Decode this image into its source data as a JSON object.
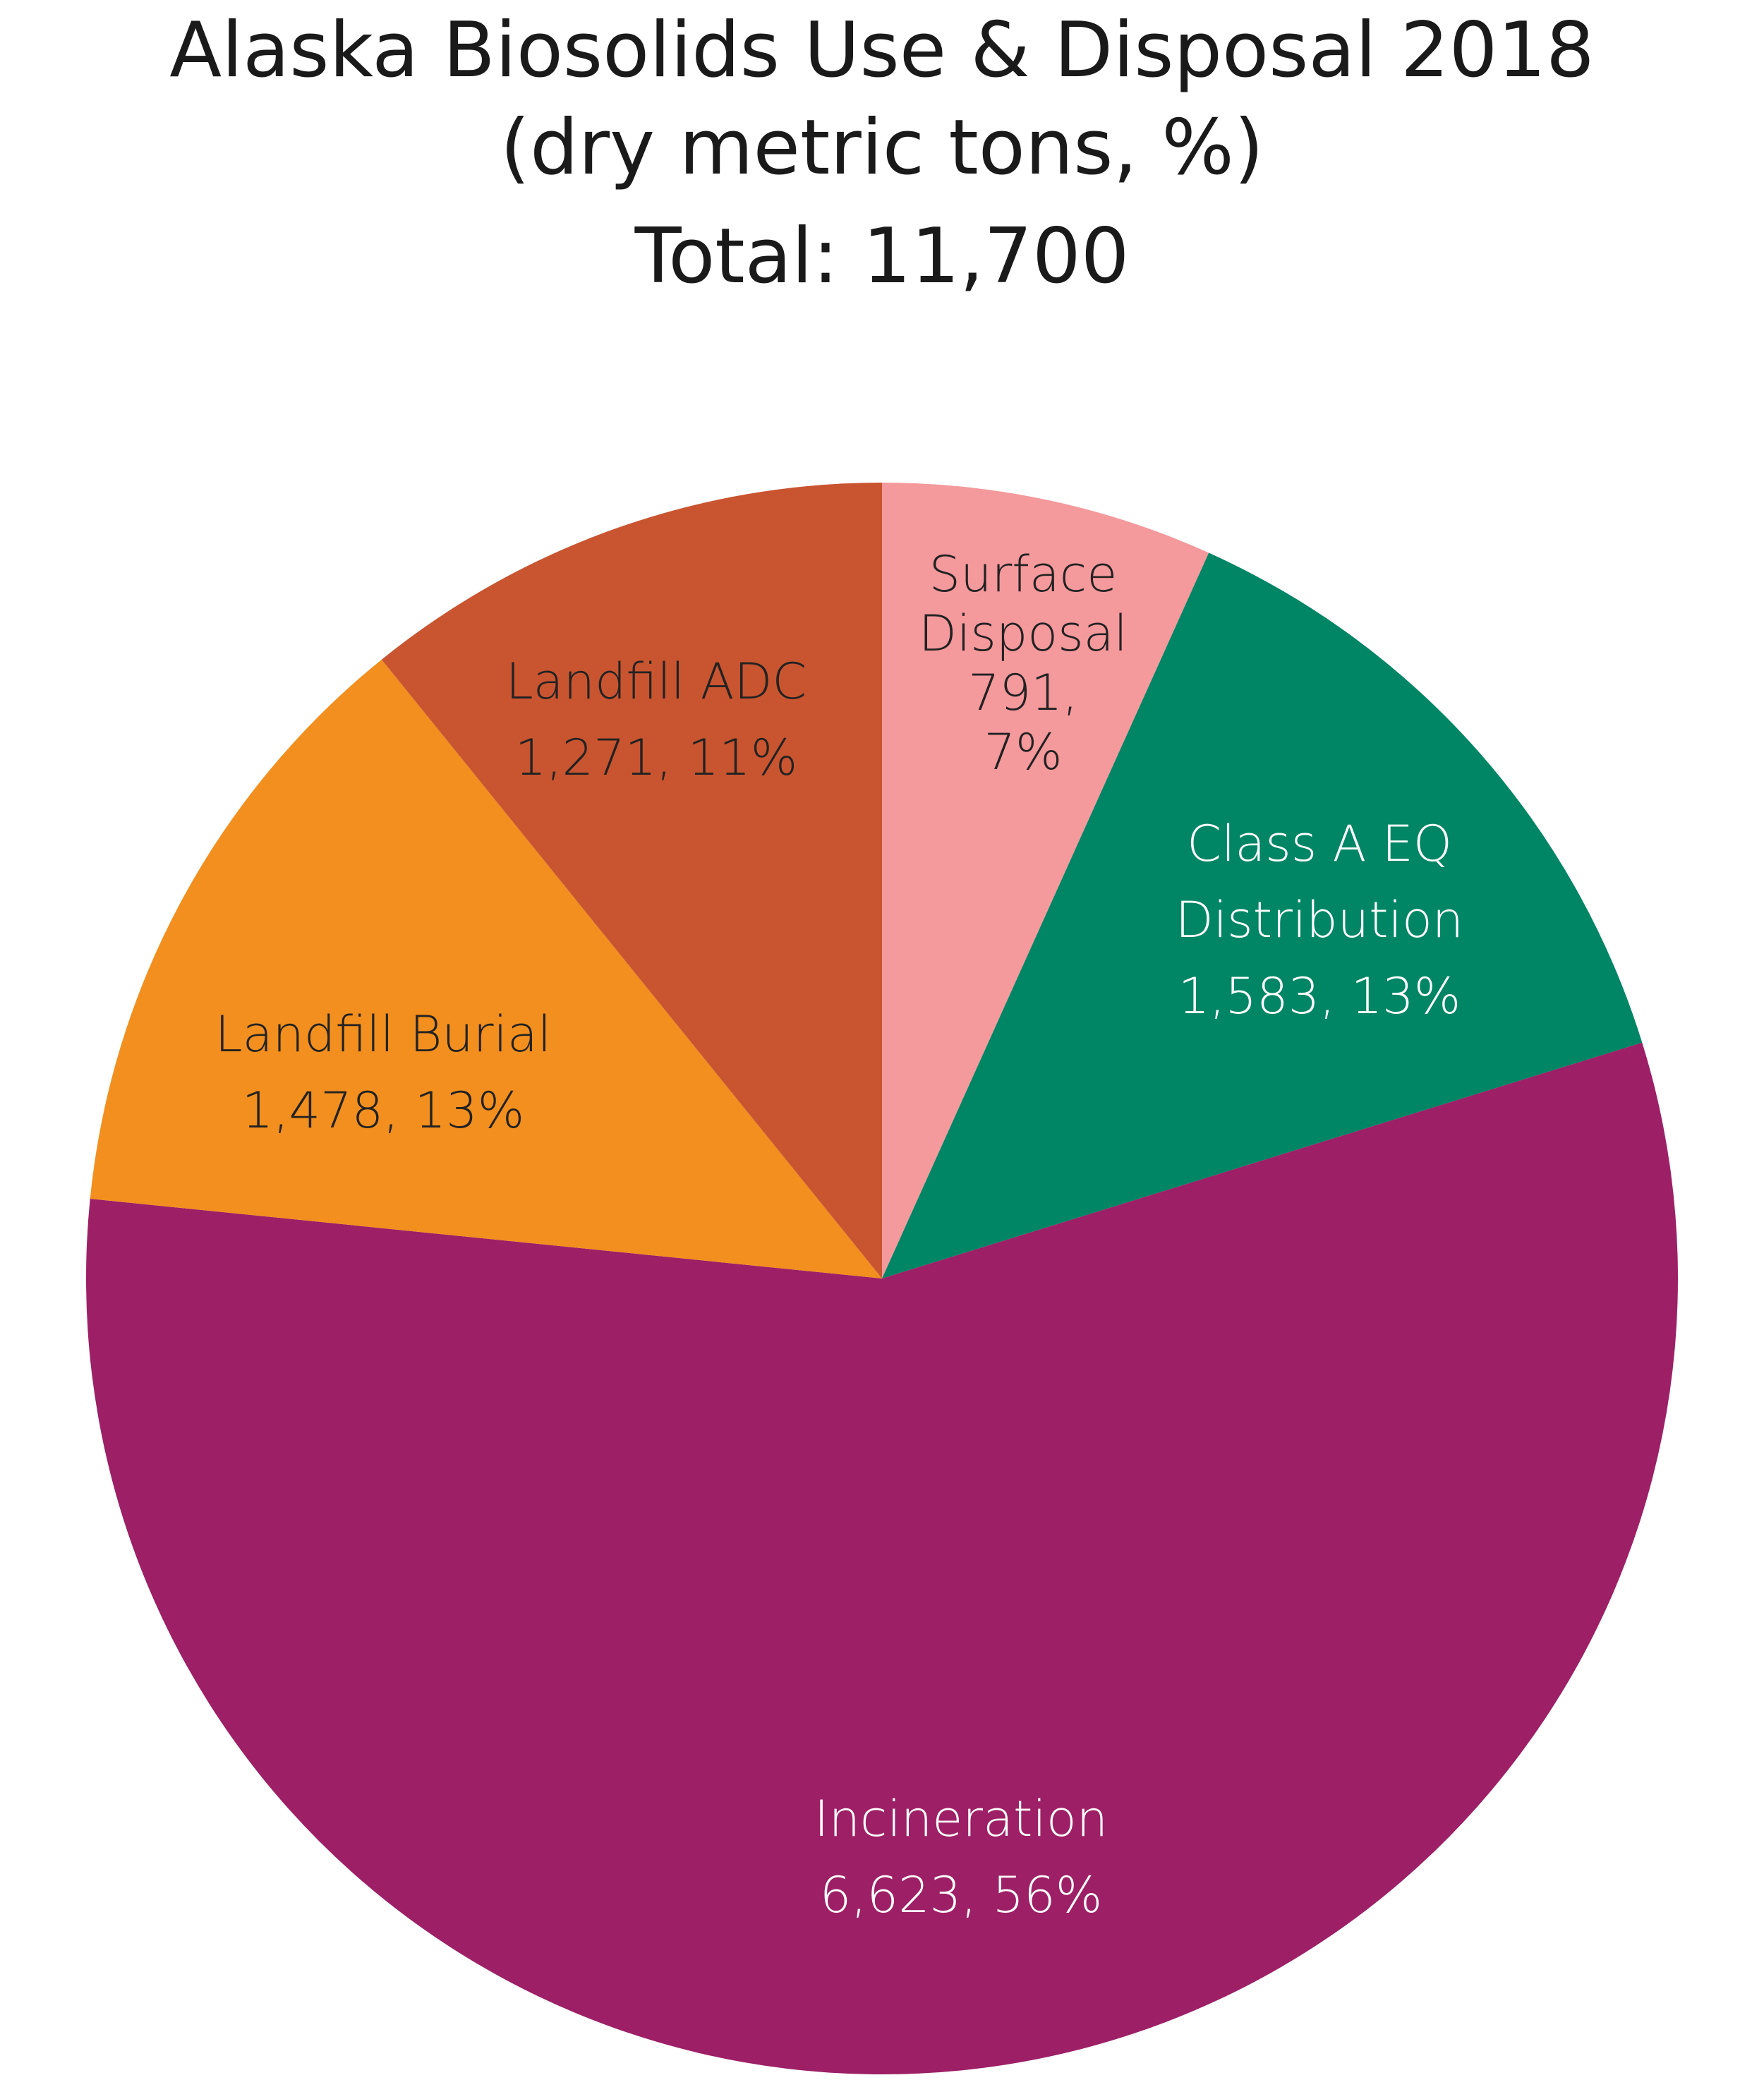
{
  "chart_data": {
    "type": "pie",
    "title": [
      "Alaska Biosolids Use & Disposal 2018",
      "(dry metric tons, %)",
      "Total: 11,700"
    ],
    "slices": [
      {
        "name": "Surface Disposal",
        "value": 791,
        "percent": 7,
        "color": "#F4999C",
        "label_color": "#222222",
        "label_lines": [
          "Surface",
          "Disposal",
          "791,",
          "7%"
        ]
      },
      {
        "name": "Class A EQ Distribution",
        "value": 1583,
        "percent": 13,
        "color": "#008565",
        "label_color": "#ffffff",
        "label_lines": [
          "Class A EQ",
          "Distribution",
          "1,583, 13%"
        ]
      },
      {
        "name": "Incineration",
        "value": 6623,
        "percent": 56,
        "color": "#9D1F66",
        "label_color": "#ffffff",
        "label_lines": [
          "Incineration",
          "6,623, 56%"
        ]
      },
      {
        "name": "Landfill Burial",
        "value": 1478,
        "percent": 13,
        "color": "#F28F1E",
        "label_color": "#222222",
        "label_lines": [
          "Landfill Burial",
          "1,478, 13%"
        ]
      },
      {
        "name": "Landfill ADC",
        "value": 1271,
        "percent": 11,
        "color": "#C95530",
        "label_color": "#222222",
        "label_lines": [
          "Landfill ADC",
          "1,271, 11%"
        ]
      }
    ],
    "start": "12 o'clock",
    "direction": "clockwise",
    "legend": "none"
  }
}
